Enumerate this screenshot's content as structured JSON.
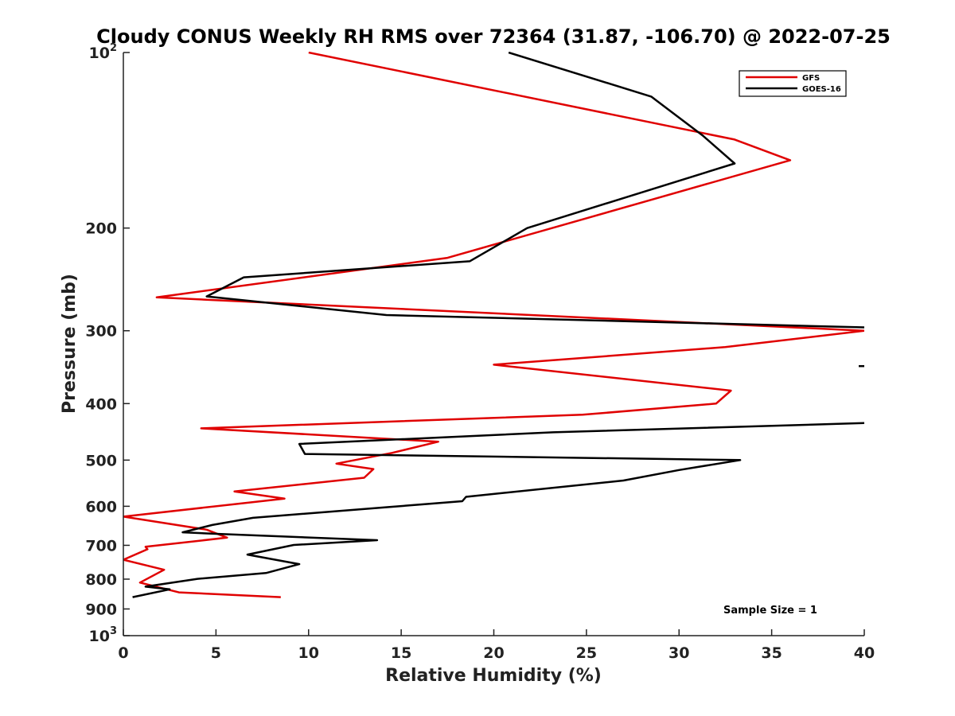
{
  "chart_data": {
    "type": "line",
    "title": "Cloudy CONUS Weekly RH RMS over 72364 (31.87, -106.70) @ 2022-07-25",
    "xlabel": "Relative Humidity (%)",
    "ylabel": "Pressure (mb)",
    "xlim": [
      0,
      40
    ],
    "ylim": [
      100,
      1000
    ],
    "yscale": "log",
    "y_reversed": true,
    "grid": false,
    "legend_position": "top-right",
    "x_ticks": [
      0,
      5,
      10,
      15,
      20,
      25,
      30,
      35,
      40
    ],
    "x_tick_labels": [
      "0",
      "5",
      "10",
      "15",
      "20",
      "25",
      "30",
      "35",
      "40"
    ],
    "y_ticks": [
      100,
      200,
      300,
      400,
      500,
      600,
      700,
      800,
      900,
      1000
    ],
    "y_tick_labels": [
      {
        "base": "10",
        "exp": "2"
      },
      {
        "base": "200",
        "exp": ""
      },
      {
        "base": "300",
        "exp": ""
      },
      {
        "base": "400",
        "exp": ""
      },
      {
        "base": "500",
        "exp": ""
      },
      {
        "base": "600",
        "exp": ""
      },
      {
        "base": "700",
        "exp": ""
      },
      {
        "base": "800",
        "exp": ""
      },
      {
        "base": "900",
        "exp": ""
      },
      {
        "base": "10",
        "exp": "3"
      }
    ],
    "annotation": "Sample Size = 1",
    "series": [
      {
        "name": "GFS",
        "color": "#e00000",
        "points": [
          [
            10.0,
            100
          ],
          [
            33.0,
            141
          ],
          [
            36.0,
            153
          ],
          [
            17.5,
            225
          ],
          [
            1.8,
            263
          ],
          [
            40.0,
            300
          ],
          [
            32.5,
            320
          ],
          [
            20.0,
            343
          ],
          [
            32.8,
            380
          ],
          [
            32.0,
            400
          ],
          [
            24.8,
            418
          ],
          [
            4.2,
            441
          ],
          [
            17.0,
            465
          ],
          [
            14.5,
            486
          ],
          [
            11.5,
            507
          ],
          [
            13.5,
            518
          ],
          [
            13.0,
            536
          ],
          [
            6.0,
            566
          ],
          [
            8.7,
            582
          ],
          [
            0.0,
            625
          ],
          [
            4.5,
            658
          ],
          [
            5.6,
            679
          ],
          [
            1.2,
            704
          ],
          [
            1.3,
            711
          ],
          [
            0.0,
            741
          ],
          [
            2.2,
            771
          ],
          [
            0.9,
            811
          ],
          [
            3.0,
            843
          ],
          [
            8.5,
            859
          ]
        ]
      },
      {
        "name": "GOES-16",
        "color": "#000000",
        "points": [
          [
            20.8,
            100
          ],
          [
            28.5,
            119
          ],
          [
            31.3,
            139
          ],
          [
            33.0,
            155
          ],
          [
            21.8,
            200
          ],
          [
            18.7,
            228
          ],
          [
            6.5,
            243
          ],
          [
            4.5,
            262
          ],
          [
            14.2,
            282
          ],
          [
            40.0,
            296
          ],
          null,
          [
            40.0,
            432
          ],
          [
            23.2,
            448
          ],
          [
            9.5,
            469
          ],
          [
            9.8,
            488
          ],
          [
            33.3,
            500
          ],
          [
            30.0,
            520
          ],
          [
            27.0,
            542
          ],
          [
            18.5,
            578
          ],
          [
            18.3,
            588
          ],
          [
            7.0,
            628
          ],
          [
            4.8,
            646
          ],
          [
            3.2,
            665
          ],
          [
            5.0,
            669
          ],
          [
            13.7,
            686
          ],
          [
            9.2,
            699
          ],
          [
            6.7,
            726
          ],
          [
            9.5,
            754
          ],
          [
            7.7,
            781
          ],
          [
            4.0,
            799
          ],
          [
            1.2,
            824
          ],
          [
            2.5,
            833
          ],
          [
            0.5,
            859
          ]
        ]
      },
      {
        "name": "",
        "color": "#000000",
        "points": [
          [
            39.7,
            345
          ],
          [
            40.0,
            345
          ]
        ]
      }
    ]
  }
}
